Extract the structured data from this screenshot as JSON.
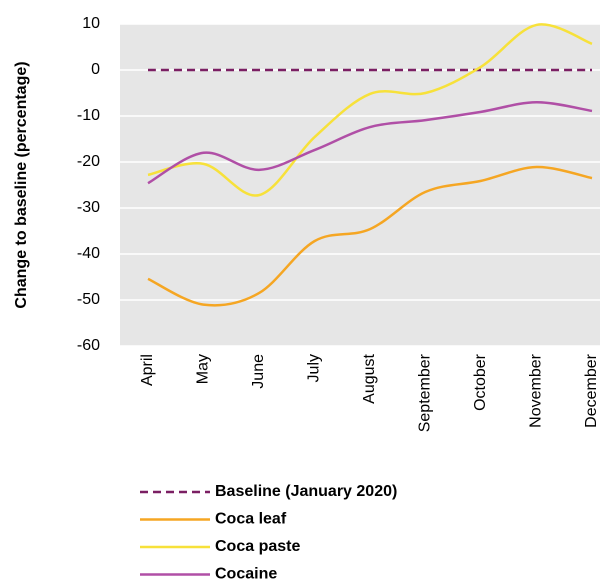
{
  "chart_data": {
    "type": "line",
    "y_label": "Change to baseline (percentage)",
    "categories": [
      "April",
      "May",
      "June",
      "July",
      "August",
      "September",
      "October",
      "November",
      "December"
    ],
    "series": [
      {
        "name": "Baseline (January 2020)",
        "color": "#7b1f63",
        "dashed": true,
        "values": [
          0,
          0,
          0,
          0,
          0,
          0,
          0,
          0,
          0
        ]
      },
      {
        "name": "Coca leaf",
        "color": "#f5a623",
        "values": [
          -45.4,
          -51,
          -48.5,
          -37.2,
          -34.6,
          -26.5,
          -24.1,
          -21.1,
          -23.5
        ]
      },
      {
        "name": "Coca paste",
        "color": "#f7e13a",
        "values": [
          -22.8,
          -20.4,
          -27.2,
          -14.6,
          -5.2,
          -5,
          0.7,
          9.8,
          5.7
        ]
      },
      {
        "name": "Cocaine",
        "color": "#b04fa6",
        "values": [
          -24.6,
          -18,
          -21.7,
          -17.4,
          -12.4,
          -10.9,
          -9.1,
          -7,
          -8.9
        ]
      }
    ],
    "ylim": [
      -60,
      10
    ],
    "yticks": [
      -60,
      -50,
      -40,
      -30,
      -20,
      -10,
      0,
      10
    ],
    "grid": true,
    "smooth": true
  }
}
